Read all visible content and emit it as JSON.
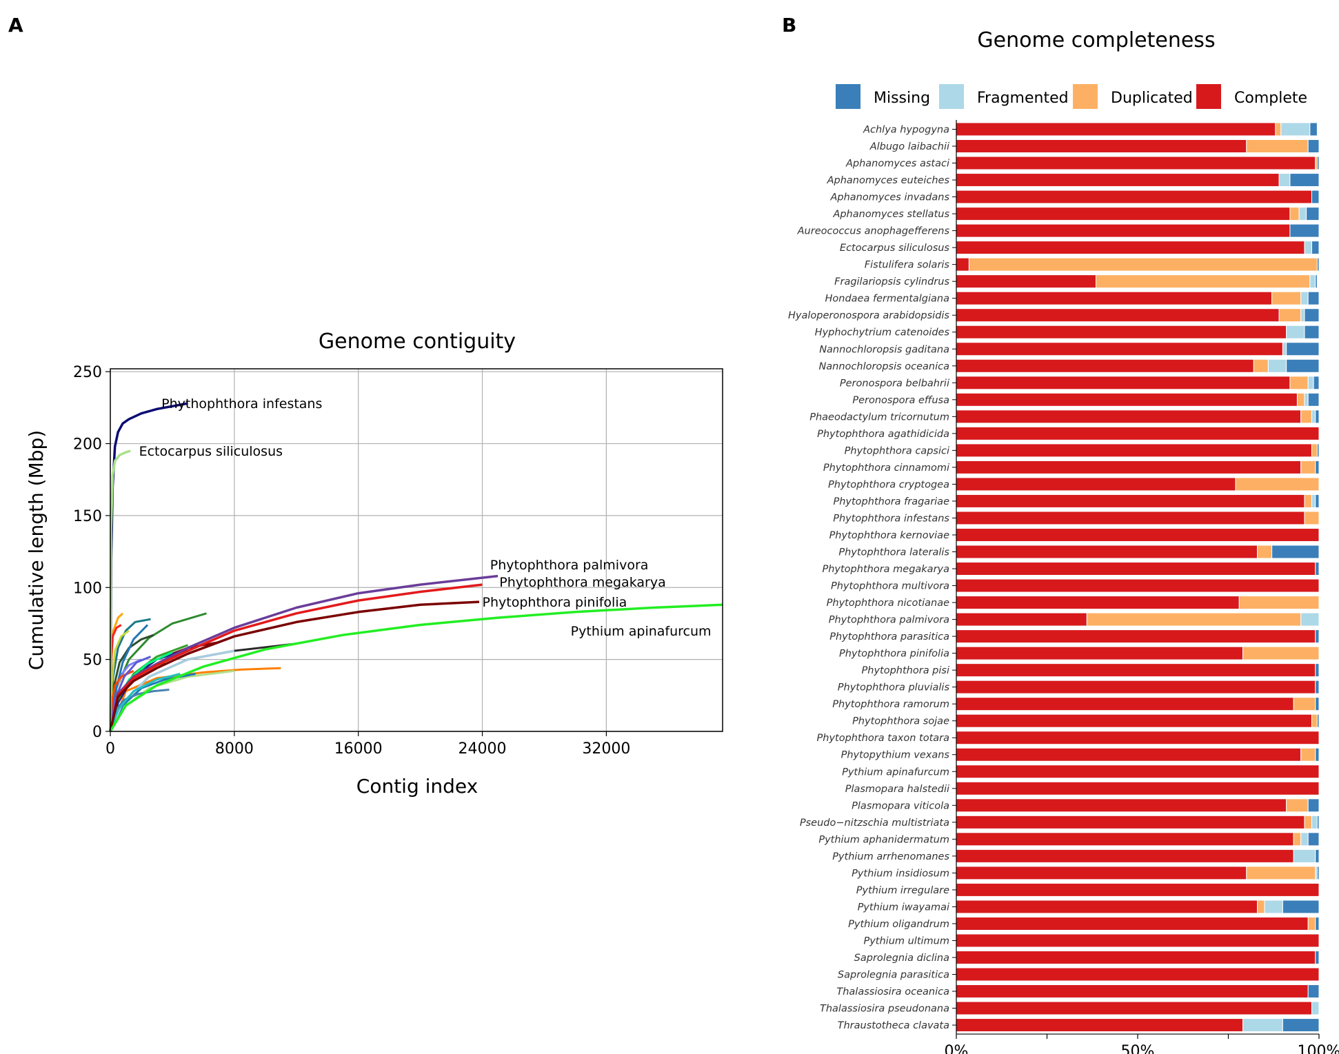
{
  "chart_data": [
    {
      "panel": "A",
      "type": "line",
      "title": "Genome contiguity",
      "xlabel": "Contig index",
      "ylabel": "Cumulative length (Mbp)",
      "xlim": [
        0,
        39500
      ],
      "ylim": [
        0,
        252
      ],
      "xticks": [
        0,
        8000,
        16000,
        24000,
        32000
      ],
      "yticks": [
        0,
        50,
        100,
        150,
        200,
        250
      ],
      "grid": true,
      "highlighted_series": [
        {
          "name": "Phythophthora infestans",
          "color": "#0b0b73",
          "x": [
            0,
            60,
            150,
            300,
            500,
            800,
            1200,
            2000,
            3000,
            4000,
            5000
          ],
          "y": [
            0,
            120,
            170,
            198,
            208,
            214,
            217,
            221,
            224,
            226,
            228
          ]
        },
        {
          "name": "Ectocarpus siliculosus",
          "color": "#a8e08a",
          "x": [
            0,
            50,
            150,
            300,
            600,
            1000,
            1300
          ],
          "y": [
            0,
            140,
            178,
            188,
            192,
            194,
            195
          ]
        },
        {
          "name": "Phytophthora palmivora",
          "color": "#6a3d9a",
          "x": [
            0,
            500,
            1500,
            3000,
            5000,
            8000,
            12000,
            16000,
            20000,
            25000
          ],
          "y": [
            0,
            26,
            38,
            47,
            58,
            72,
            86,
            96,
            102,
            108
          ]
        },
        {
          "name": "Phytophthora megakarya",
          "color": "#e31a1c",
          "x": [
            0,
            500,
            1500,
            3000,
            5000,
            8000,
            12000,
            16000,
            20000,
            24000
          ],
          "y": [
            0,
            25,
            37,
            46,
            56,
            70,
            82,
            91,
            97,
            102
          ]
        },
        {
          "name": "Phytophthora pinifolia",
          "color": "#7a0000",
          "x": [
            0,
            500,
            1500,
            3000,
            5000,
            8000,
            12000,
            16000,
            20000,
            23800
          ],
          "y": [
            0,
            24,
            35,
            44,
            54,
            66,
            76,
            83,
            88,
            90
          ]
        },
        {
          "name": "Pythium apinafurcum",
          "color": "#22ee22",
          "x": [
            0,
            1000,
            3000,
            6000,
            10000,
            15000,
            20000,
            25000,
            30000,
            35000,
            39500
          ],
          "y": [
            0,
            18,
            32,
            45,
            57,
            67,
            74,
            79,
            83,
            86,
            88
          ]
        }
      ],
      "background_series": [
        {
          "color": "#ff7f00",
          "x": [
            0,
            1000,
            3000,
            6000,
            8500,
            11000
          ],
          "y": [
            0,
            28,
            37,
            41,
            43,
            44
          ]
        },
        {
          "color": "#2e8b2e",
          "x": [
            0,
            400,
            1200,
            2500,
            4000,
            6200
          ],
          "y": [
            0,
            30,
            50,
            65,
            75,
            82
          ]
        },
        {
          "color": "#2a2a2a",
          "x": [
            0,
            800,
            2500,
            5000,
            8000,
            12000
          ],
          "y": [
            0,
            20,
            38,
            50,
            56,
            61
          ]
        },
        {
          "color": "#8b0000",
          "x": [
            0,
            500,
            1500,
            3000,
            5000,
            7000
          ],
          "y": [
            0,
            22,
            38,
            50,
            58,
            62
          ]
        },
        {
          "color": "#b2df8a",
          "x": [
            0,
            800,
            2500,
            5000,
            8000
          ],
          "y": [
            0,
            16,
            30,
            38,
            42
          ]
        },
        {
          "color": "#1f78b4",
          "x": [
            0,
            800,
            2000,
            3500,
            5500
          ],
          "y": [
            0,
            18,
            30,
            36,
            40
          ]
        },
        {
          "color": "#a6cee3",
          "x": [
            0,
            800,
            2500,
            5000,
            8000
          ],
          "y": [
            0,
            20,
            38,
            50,
            56
          ]
        },
        {
          "color": "#33a02c",
          "x": [
            0,
            500,
            1500,
            3000,
            5000
          ],
          "y": [
            0,
            22,
            40,
            52,
            60
          ]
        },
        {
          "color": "#1f1f8a",
          "x": [
            0,
            500,
            1500,
            3000,
            5000
          ],
          "y": [
            0,
            20,
            38,
            50,
            57
          ]
        },
        {
          "color": "#1a7a8a",
          "x": [
            0,
            150,
            500,
            1000,
            1600,
            2600
          ],
          "y": [
            0,
            36,
            58,
            70,
            76,
            78
          ]
        },
        {
          "color": "#ffa500",
          "x": [
            0,
            60,
            200,
            500,
            800
          ],
          "y": [
            0,
            48,
            70,
            79,
            82
          ]
        },
        {
          "color": "#ff2020",
          "x": [
            0,
            50,
            150,
            400,
            700
          ],
          "y": [
            0,
            50,
            66,
            72,
            74
          ]
        },
        {
          "color": "#2f4f2f",
          "x": [
            0,
            200,
            600,
            1200,
            2000,
            2800
          ],
          "y": [
            0,
            30,
            48,
            58,
            64,
            67
          ]
        },
        {
          "color": "#c8d840",
          "x": [
            0,
            100,
            300,
            700,
            1200
          ],
          "y": [
            0,
            34,
            56,
            66,
            70
          ]
        },
        {
          "color": "#4682b4",
          "x": [
            0,
            300,
            900,
            1800,
            2800,
            3800
          ],
          "y": [
            0,
            14,
            22,
            26,
            28,
            29
          ]
        },
        {
          "color": "#7f7fff",
          "x": [
            0,
            200,
            600,
            1200,
            2000
          ],
          "y": [
            0,
            22,
            38,
            46,
            50
          ]
        },
        {
          "color": "#ff9f9f",
          "x": [
            0,
            200,
            600,
            1200
          ],
          "y": [
            0,
            24,
            36,
            42
          ]
        },
        {
          "color": "#1f78b4",
          "x": [
            0,
            300,
            800,
            1500,
            2400
          ],
          "y": [
            0,
            26,
            48,
            64,
            74
          ]
        },
        {
          "color": "#20c0c0",
          "x": [
            0,
            500,
            1500,
            3000,
            4500
          ],
          "y": [
            0,
            15,
            28,
            36,
            40
          ]
        },
        {
          "color": "#ff4500",
          "x": [
            0,
            100,
            300,
            700,
            1500
          ],
          "y": [
            0,
            20,
            32,
            38,
            42
          ]
        },
        {
          "color": "#00ff7f",
          "x": [
            0,
            400,
            1200,
            2400,
            4000
          ],
          "y": [
            0,
            20,
            36,
            47,
            55
          ]
        },
        {
          "color": "#228b22",
          "x": [
            0,
            300,
            1000,
            2000,
            3500
          ],
          "y": [
            0,
            18,
            32,
            42,
            48
          ]
        },
        {
          "color": "#5b5bd6",
          "x": [
            0,
            300,
            900,
            1700,
            2600
          ],
          "y": [
            0,
            22,
            38,
            48,
            52
          ]
        }
      ],
      "annotations": [
        {
          "text": "Phythophthora infestans",
          "x": 3300,
          "y": 228
        },
        {
          "text": "Ectocarpus siliculosus",
          "x": 1850,
          "y": 195
        },
        {
          "text": "Phytophthora palmivora",
          "x": 24500,
          "y": 116
        },
        {
          "text": "Phytophthora megakarya",
          "x": 25100,
          "y": 104
        },
        {
          "text": "Phytophthora pinifolia",
          "x": 24000,
          "y": 90
        },
        {
          "text": "Pythium apinafurcum",
          "x": 29700,
          "y": 70
        }
      ]
    },
    {
      "panel": "B",
      "type": "bar",
      "orientation": "horizontal",
      "stacked": true,
      "title": "Genome completeness",
      "legend": [
        {
          "name": "Missing",
          "color": "#3a7fb9"
        },
        {
          "name": "Fragmented",
          "color": "#add8e8"
        },
        {
          "name": "Duplicated",
          "color": "#fdb063"
        },
        {
          "name": "Complete",
          "color": "#d7191c"
        }
      ],
      "xticks": [
        "0%",
        "50%",
        "100%"
      ],
      "stack_order": [
        "Complete",
        "Duplicated",
        "Fragmented",
        "Missing"
      ],
      "categories": [
        "Achlya hypogyna",
        "Albugo laibachii",
        "Aphanomyces astaci",
        "Aphanomyces euteiches",
        "Aphanomyces invadans",
        "Aphanomyces stellatus",
        "Aureococcus anophagefferens",
        "Ectocarpus siliculosus",
        "Fistulifera solaris",
        "Fragilariopsis cylindrus",
        "Hondaea fermentalgiana",
        "Hyaloperonospora arabidopsidis",
        "Hyphochytrium catenoides",
        "Nannochloropsis gaditana",
        "Nannochloropsis oceanica",
        "Peronospora belbahrii",
        "Peronospora effusa",
        "Phaeodactylum tricornutum",
        "Phytophthora agathidicida",
        "Phytophthora capsici",
        "Phytophthora cinnamomi",
        "Phytophthora cryptogea",
        "Phytophthora fragariae",
        "Phytophthora infestans",
        "Phytophthora kernoviae",
        "Phytophthora lateralis",
        "Phytophthora megakarya",
        "Phytophthora multivora",
        "Phytophthora nicotianae",
        "Phytophthora palmivora",
        "Phytophthora parasitica",
        "Phytophthora pinifolia",
        "Phytophthora pisi",
        "Phytophthora pluvialis",
        "Phytophthora ramorum",
        "Phytophthora sojae",
        "Phytophthora taxon totara",
        "Phytopythium vexans",
        "Pythium apinafurcum",
        "Plasmopara halstedii",
        "Plasmopara viticola",
        "Pseudo−nitzschia multistriata",
        "Pythium aphanidermatum",
        "Pythium arrhenomanes",
        "Pythium insidiosum",
        "Pythium irregulare",
        "Pythium iwayamai",
        "Pythium oligandrum",
        "Pythium ultimum",
        "Saprolegnia diclina",
        "Saprolegnia parasitica",
        "Thalassiosira oceanica",
        "Thalassiosira pseudonana",
        "Thraustotheca clavata"
      ],
      "series": [
        {
          "name": "Complete",
          "values": [
            88,
            80,
            99,
            89,
            98,
            92,
            92,
            96,
            3.5,
            38.5,
            87,
            89,
            91,
            90,
            82,
            92,
            94,
            95,
            100,
            98,
            95,
            77,
            96,
            96,
            100,
            83,
            99,
            100,
            78,
            36,
            99,
            79,
            99,
            99,
            93,
            98,
            100,
            95,
            100,
            100,
            91,
            96,
            93,
            93,
            80,
            100,
            83,
            97,
            100,
            99,
            100,
            97,
            98,
            79
          ]
        },
        {
          "name": "Duplicated",
          "values": [
            1.5,
            17,
            0.5,
            0,
            0,
            2.5,
            0,
            0,
            96,
            59,
            8,
            6,
            0,
            0,
            4,
            5,
            2,
            3,
            0,
            1.5,
            4,
            23,
            2,
            4,
            0,
            4,
            0,
            0,
            22,
            59,
            0,
            21,
            0,
            0,
            6,
            1.5,
            0,
            4,
            0,
            0,
            6,
            2,
            2,
            0,
            19,
            0,
            2,
            2,
            0,
            0,
            0,
            0,
            0,
            0
          ]
        },
        {
          "name": "Fragmented",
          "values": [
            8,
            0,
            0,
            3,
            0,
            2,
            0,
            2,
            0,
            1.5,
            2,
            1,
            5,
            1,
            5,
            1.5,
            1,
            1,
            0,
            0,
            0,
            0,
            1,
            0,
            0,
            0,
            0,
            0,
            0,
            5,
            0,
            0,
            0,
            0,
            0,
            0,
            0,
            0,
            0,
            0,
            0,
            1.5,
            2,
            6,
            0.5,
            0,
            5,
            0,
            0,
            0,
            0,
            0,
            2,
            11
          ]
        },
        {
          "name": "Missing",
          "values": [
            2,
            3,
            0.5,
            8,
            2,
            3.5,
            8,
            2,
            0.5,
            0.5,
            3,
            4,
            4,
            9,
            9,
            1.5,
            3,
            1,
            0,
            0.5,
            1,
            0,
            1,
            0,
            0,
            13,
            1,
            0,
            0,
            0,
            1,
            0,
            1,
            1,
            1,
            0.5,
            0,
            1,
            0,
            0,
            3,
            0.5,
            3,
            1,
            0.5,
            0,
            10,
            1,
            0,
            1,
            0,
            3,
            0,
            10
          ]
        }
      ]
    }
  ],
  "labels": {
    "panel_a": "A",
    "panel_b": "B"
  }
}
